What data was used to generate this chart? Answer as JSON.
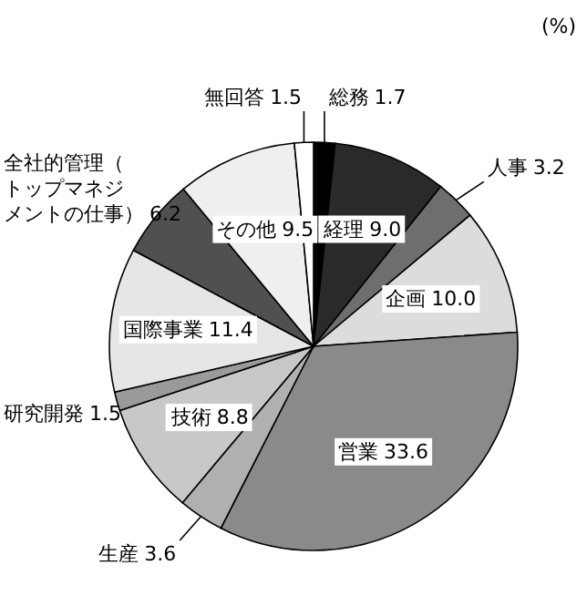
{
  "chart_data": {
    "type": "pie",
    "annotations": [
      "(%)"
    ],
    "categories": [
      "総務",
      "経理",
      "人事",
      "企画",
      "営業",
      "生産",
      "技術",
      "研究開発",
      "国際事業",
      "全社的管理（トップマネジメントの仕事）",
      "その他",
      "無回答"
    ],
    "values": [
      1.7,
      9.0,
      3.2,
      10.0,
      33.6,
      3.6,
      8.8,
      1.5,
      11.4,
      6.2,
      9.5,
      1.5
    ],
    "colors": [
      "#000000",
      "#2a2a2a",
      "#6e6e6e",
      "#dcdcdc",
      "#8a8a8a",
      "#b0b0b0",
      "#c8c8c8",
      "#9a9a9a",
      "#e6e6e6",
      "#505050",
      "#efefef",
      "#ffffff"
    ],
    "value_labels": [
      "1.7",
      "9.0",
      "3.2",
      "10.0",
      "33.6",
      "3.6",
      "8.8",
      "1.5",
      "11.4",
      "6.2",
      "9.5",
      "1.5"
    ]
  }
}
